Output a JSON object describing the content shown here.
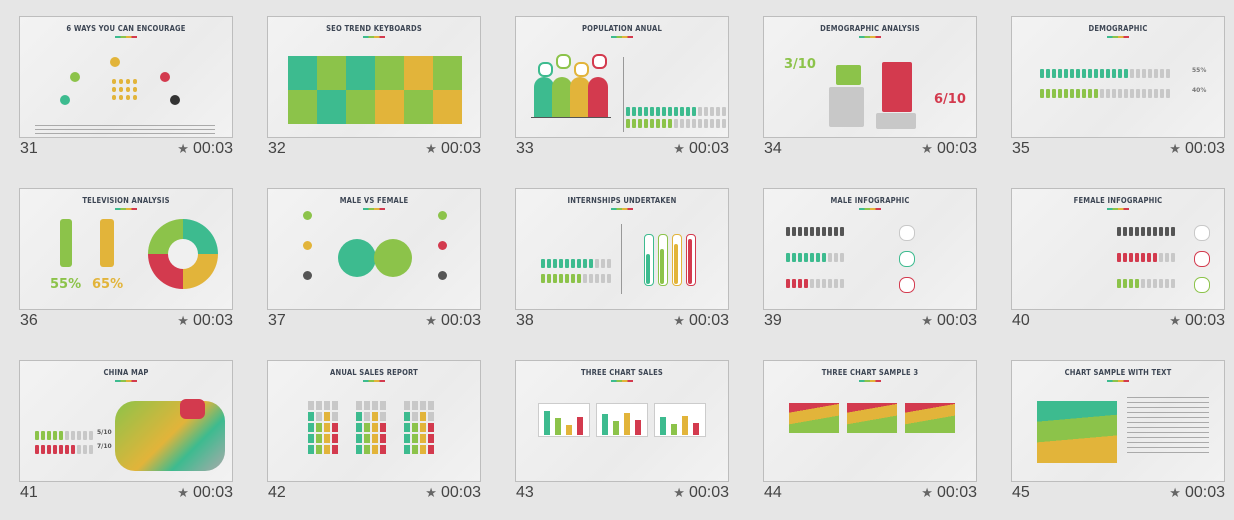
{
  "slides": [
    {
      "number": "31",
      "title": "6 WAYS YOU CAN ENCOURAGE",
      "time": "00:03"
    },
    {
      "number": "32",
      "title": "SEO TREND KEYBOARDS",
      "time": "00:03"
    },
    {
      "number": "33",
      "title": "POPULATION ANUAL",
      "time": "00:03"
    },
    {
      "number": "34",
      "title": "DEMOGRAPHIC ANALYSIS",
      "time": "00:03",
      "big": [
        "3/10",
        "6/10"
      ]
    },
    {
      "number": "35",
      "title": "DEMOGRAPHIC",
      "time": "00:03",
      "big": [
        "55%",
        "40%"
      ]
    },
    {
      "number": "36",
      "title": "TELEVISION ANALYSIS",
      "time": "00:03",
      "big": [
        "55%",
        "65%"
      ]
    },
    {
      "number": "37",
      "title": "MALE VS FEMALE",
      "time": "00:03"
    },
    {
      "number": "38",
      "title": "INTERNSHIPS UNDERTAKEN",
      "time": "00:03"
    },
    {
      "number": "39",
      "title": "MALE INFOGRAPHIC",
      "time": "00:03"
    },
    {
      "number": "40",
      "title": "FEMALE INFOGRAPHIC",
      "time": "00:03"
    },
    {
      "number": "41",
      "title": "CHINA MAP",
      "time": "00:03",
      "big": [
        "5/10",
        "7/10"
      ]
    },
    {
      "number": "42",
      "title": "ANUAL SALES REPORT",
      "time": "00:03"
    },
    {
      "number": "43",
      "title": "THREE CHART SALES",
      "time": "00:03"
    },
    {
      "number": "44",
      "title": "THREE CHART SAMPLE 3",
      "time": "00:03"
    },
    {
      "number": "45",
      "title": "CHART SAMPLE WITH TEXT",
      "time": "00:03"
    }
  ],
  "colors": {
    "teal": "#3dbb8f",
    "green": "#8cc34a",
    "yellow": "#e2b43a",
    "red": "#d33a4e",
    "gray": "#c8c8c8"
  },
  "icons": {
    "timing": "star-icon"
  }
}
